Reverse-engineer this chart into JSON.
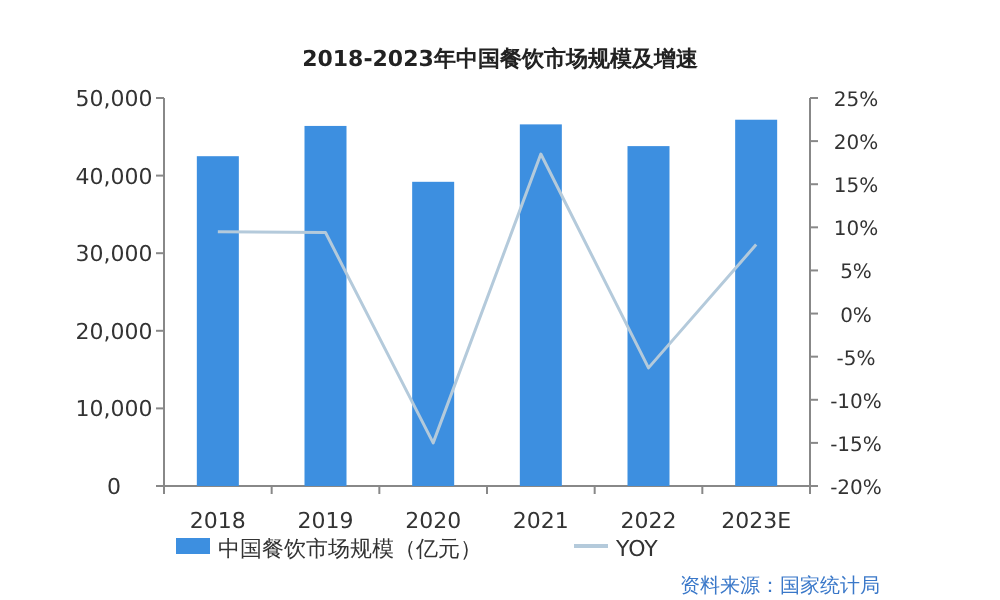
{
  "chart_data": {
    "type": "bar",
    "title": "2018-2023年中国餐饮市场规模及增速",
    "categories": [
      "2018",
      "2019",
      "2020",
      "2021",
      "2022",
      "2023E"
    ],
    "series": [
      {
        "name": "中国餐饮市场规模（亿元）",
        "color": "#3d8fe0",
        "values": [
          42500,
          46400,
          39200,
          46600,
          43800,
          47200
        ]
      },
      {
        "name": "YOY",
        "type": "line",
        "axis": "y2",
        "color": "#b4cadb",
        "values": [
          9.5,
          9.4,
          -15,
          18.5,
          -6.3,
          8
        ]
      }
    ],
    "ylim": [
      0,
      50000
    ],
    "yticks": [
      {
        "value": 0,
        "label": "0"
      },
      {
        "value": 10000,
        "label": "10,000"
      },
      {
        "value": 20000,
        "label": "20,000"
      },
      {
        "value": 30000,
        "label": "30,000"
      },
      {
        "value": 40000,
        "label": "40,000"
      },
      {
        "value": 50000,
        "label": "50,000"
      }
    ],
    "y2lim": [
      -20,
      25
    ],
    "y2ticks": [
      {
        "value": -20,
        "label": "-20%"
      },
      {
        "value": -15,
        "label": "-15%"
      },
      {
        "value": -10,
        "label": "-10%"
      },
      {
        "value": -5,
        "label": "-5%"
      },
      {
        "value": 0,
        "label": "0%"
      },
      {
        "value": 5,
        "label": "5%"
      },
      {
        "value": 10,
        "label": "10%"
      },
      {
        "value": 15,
        "label": "15%"
      },
      {
        "value": 20,
        "label": "20%"
      },
      {
        "value": 25,
        "label": "25%"
      }
    ],
    "legend": "bottom",
    "grid": false,
    "marker": "none",
    "line_style": "solid",
    "annotations": [
      "资料来源：国家统计局"
    ]
  }
}
